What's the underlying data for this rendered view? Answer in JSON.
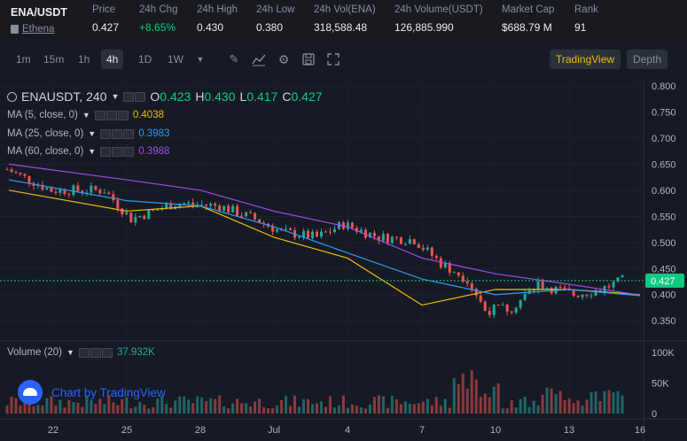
{
  "header": {
    "symbol": "ENA/USDT",
    "name": "Ethena",
    "stats": [
      {
        "label": "Price",
        "value": "0.427",
        "tone": "normal"
      },
      {
        "label": "24h Chg",
        "value": "+8.65%",
        "tone": "up"
      },
      {
        "label": "24h High",
        "value": "0.430",
        "tone": "normal"
      },
      {
        "label": "24h Low",
        "value": "0.380",
        "tone": "normal"
      },
      {
        "label": "24h Vol(ENA)",
        "value": "318,588.48",
        "tone": "normal"
      },
      {
        "label": "24h Volume(USDT)",
        "value": "126,885.990",
        "tone": "normal"
      },
      {
        "label": "Market Cap",
        "value": "$688.79 M",
        "tone": "normal"
      },
      {
        "label": "Rank",
        "value": "91",
        "tone": "normal"
      }
    ]
  },
  "toolbar": {
    "timeframes": [
      "1m",
      "15m",
      "1h",
      "4h",
      "1D",
      "1W"
    ],
    "active_timeframe": "4h",
    "tools": [
      "dropdown-icon",
      "pencil-icon",
      "line-chart-icon",
      "settings-icon",
      "save-icon",
      "fullscreen-icon"
    ],
    "tradingview_label": "TradingView",
    "depth_label": "Depth"
  },
  "chart": {
    "title": "ENAUSDT, 240",
    "ohlc": {
      "o_label": "O",
      "o": "0.423",
      "h_label": "H",
      "h": "0.430",
      "l_label": "L",
      "l": "0.417",
      "c_label": "C",
      "c": "0.427"
    },
    "indicators": [
      {
        "label": "MA (5, close, 0)",
        "value": "0.4038",
        "color": "#f0b90b"
      },
      {
        "label": "MA (25, close, 0)",
        "value": "0.3983",
        "color": "#2a9df4"
      },
      {
        "label": "MA (60, close, 0)",
        "value": "0.3988",
        "color": "#a04de8"
      }
    ],
    "volume_label": "Volume (20)",
    "volume_value": "37.932K",
    "watermark": "Chart by TradingView",
    "price_ticks": [
      "0.800",
      "0.750",
      "0.700",
      "0.650",
      "0.600",
      "0.550",
      "0.500",
      "0.450",
      "0.400",
      "0.350"
    ],
    "current_price_tag": "0.427",
    "volume_ticks": [
      "100K",
      "50K",
      "0"
    ],
    "time_ticks": [
      "22",
      "25",
      "28",
      "Jul",
      "4",
      "7",
      "10",
      "13",
      "16"
    ],
    "colors": {
      "up": "#26a69a",
      "down": "#ef5350",
      "ma5": "#f0b90b",
      "ma25": "#2a9df4",
      "ma60": "#a04de8",
      "price_line": "#0ecb81"
    }
  },
  "chart_data": {
    "type": "line",
    "title": "ENAUSDT, 240",
    "xlabel": "",
    "ylabel": "",
    "ylim": [
      0.33,
      0.805
    ],
    "x": [
      "22",
      "25",
      "28",
      "Jul",
      "4",
      "7",
      "10",
      "13",
      "16"
    ],
    "series": [
      {
        "name": "MA (5, close, 0)",
        "values": [
          0.6,
          0.56,
          0.57,
          0.51,
          0.47,
          0.38,
          0.41,
          0.41,
          0.4
        ]
      },
      {
        "name": "MA (25, close, 0)",
        "values": [
          0.62,
          0.58,
          0.57,
          0.53,
          0.48,
          0.43,
          0.4,
          0.41,
          0.398
        ]
      },
      {
        "name": "MA (60, close, 0)",
        "values": [
          0.65,
          0.62,
          0.6,
          0.56,
          0.53,
          0.47,
          0.44,
          0.42,
          0.399
        ]
      }
    ],
    "volume_ylim": [
      0,
      110000
    ],
    "last_price": 0.427
  }
}
